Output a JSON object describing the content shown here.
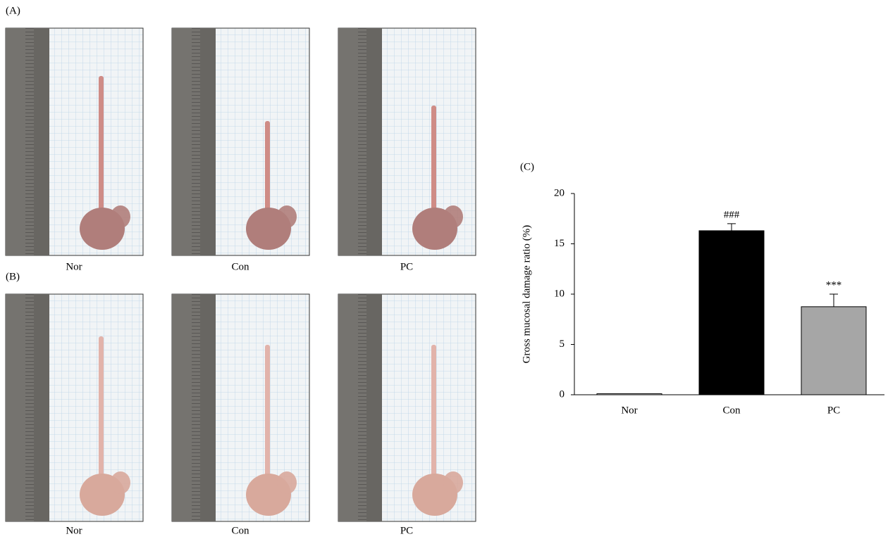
{
  "panel_a": {
    "label": "(A)",
    "captions": [
      "Nor",
      "Con",
      "PC"
    ]
  },
  "panel_b": {
    "label": "(B)",
    "captions": [
      "Nor",
      "Con",
      "PC"
    ]
  },
  "chart_data": {
    "type": "bar",
    "label": "(C)",
    "y_label": "Gross mucosal damage ratio (%)",
    "categories": [
      "Nor",
      "Con",
      "PC"
    ],
    "values": [
      0.1,
      16.3,
      8.75
    ],
    "errors": [
      null,
      0.7,
      1.25
    ],
    "colors": [
      "#ffffff",
      "#000000",
      "#a6a6a6"
    ],
    "annotations": [
      null,
      "###",
      "***"
    ],
    "ylim": [
      0,
      20
    ],
    "yticks": [
      0,
      5,
      10,
      15,
      20
    ]
  }
}
